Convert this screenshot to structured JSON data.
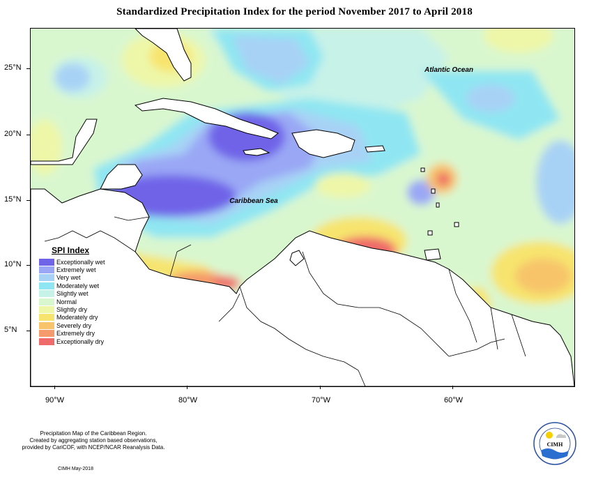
{
  "title": "Standardized Precipitation Index for the period November 2017 to April 2018",
  "map_labels": {
    "atlantic": "Atlantic Ocean",
    "caribbean": "Caribbean Sea"
  },
  "lat_labels": [
    "25°N",
    "20°N",
    "15°N",
    "10°N",
    "5°N"
  ],
  "lon_labels": [
    "90°W",
    "80°W",
    "70°W",
    "60°W"
  ],
  "legend": {
    "title": "SPI Index",
    "items": [
      {
        "label": "Exceptionally wet",
        "color": "#6f63e8"
      },
      {
        "label": "Extremely wet",
        "color": "#9aa7f5"
      },
      {
        "label": "Very wet",
        "color": "#a8d2f5"
      },
      {
        "label": "Moderately wet",
        "color": "#8fe6f2"
      },
      {
        "label": "Slightly wet",
        "color": "#c7f2e8"
      },
      {
        "label": "Normal",
        "color": "#d9f7cf"
      },
      {
        "label": "Slightly dry",
        "color": "#eef7a8"
      },
      {
        "label": "Moderately dry",
        "color": "#f7e46e"
      },
      {
        "label": "Severely dry",
        "color": "#f7c46b"
      },
      {
        "label": "Extremely dry",
        "color": "#f59a6b"
      },
      {
        "label": "Exceptionally dry",
        "color": "#ef6a6a"
      }
    ]
  },
  "footer": {
    "line1": "Precipitation Map of the Caribbean Region.",
    "line2": "Created by aggregating station based observations,",
    "line3": "provided by CariCOF, with NCEP/NCAR Reanalysis Data.",
    "credit": "CIMH May-2018"
  },
  "logo": {
    "text": "CIMH"
  }
}
